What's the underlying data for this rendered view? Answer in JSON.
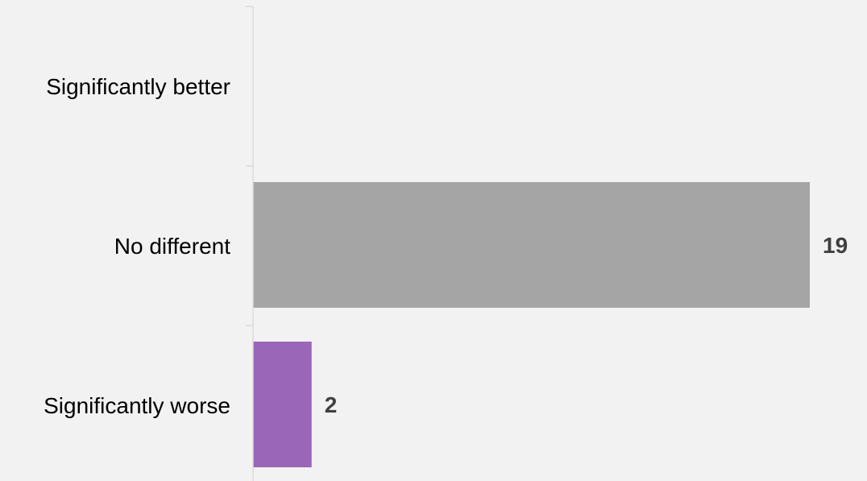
{
  "chart_data": {
    "type": "bar",
    "orientation": "horizontal",
    "categories": [
      "Significantly better",
      "No different",
      "Significantly worse"
    ],
    "values": [
      0,
      19,
      2
    ],
    "data_labels": [
      "",
      "19",
      "2"
    ],
    "colors": [
      "#a5a5a5",
      "#a5a5a5",
      "#9966b8"
    ],
    "xlim": [
      0,
      19
    ],
    "grid": false,
    "legend": "none"
  },
  "colors": {
    "background": "#f2f2f2",
    "axis": "#d9d9d9",
    "label": "#000000",
    "value_label": "#404040"
  }
}
